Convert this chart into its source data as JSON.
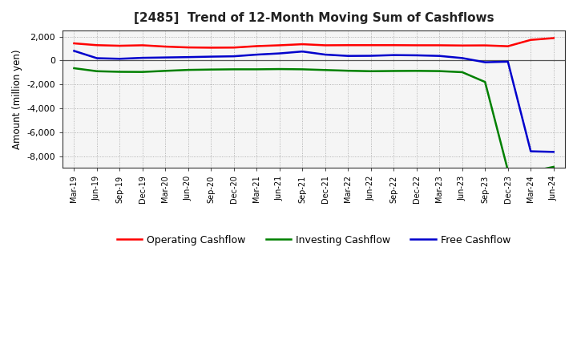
{
  "title": "[2485]  Trend of 12-Month Moving Sum of Cashflows",
  "ylabel": "Amount (million yen)",
  "ylim": [
    -9000,
    2500
  ],
  "yticks": [
    -8000,
    -6000,
    -4000,
    -2000,
    0,
    2000
  ],
  "background_color": "#ffffff",
  "plot_bg_color": "#f5f5f5",
  "grid_color": "#999999",
  "x_labels": [
    "Mar-19",
    "Jun-19",
    "Sep-19",
    "Dec-19",
    "Mar-20",
    "Jun-20",
    "Sep-20",
    "Dec-20",
    "Mar-21",
    "Jun-21",
    "Sep-21",
    "Dec-21",
    "Mar-22",
    "Jun-22",
    "Sep-22",
    "Dec-22",
    "Mar-23",
    "Jun-23",
    "Sep-23",
    "Dec-23",
    "Mar-24",
    "Jun-24"
  ],
  "operating_cashflow": [
    1430,
    1280,
    1230,
    1270,
    1160,
    1090,
    1070,
    1080,
    1200,
    1270,
    1360,
    1270,
    1280,
    1280,
    1280,
    1270,
    1270,
    1250,
    1260,
    1190,
    1720,
    1870
  ],
  "investing_cashflow": [
    -650,
    -900,
    -950,
    -960,
    -870,
    -790,
    -760,
    -740,
    -740,
    -720,
    -740,
    -800,
    -860,
    -900,
    -880,
    -870,
    -890,
    -980,
    -1800,
    -9200,
    -9300,
    -8900
  ],
  "free_cashflow": [
    800,
    190,
    140,
    220,
    250,
    280,
    320,
    350,
    490,
    590,
    750,
    490,
    380,
    390,
    450,
    430,
    380,
    200,
    -150,
    -100,
    -7600,
    -7650
  ],
  "operating_color": "#ff0000",
  "investing_color": "#008000",
  "free_color": "#0000cc",
  "line_width": 1.8,
  "legend_labels": [
    "Operating Cashflow",
    "Investing Cashflow",
    "Free Cashflow"
  ]
}
